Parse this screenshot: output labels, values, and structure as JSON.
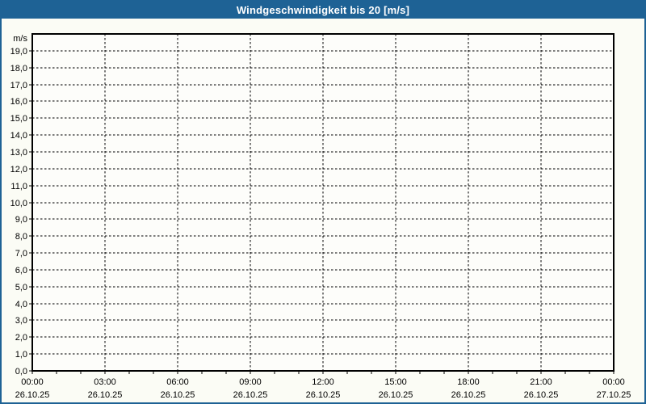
{
  "window": {
    "title": "Windgeschwindigkeit bis 20 [m/s]"
  },
  "colors": {
    "titlebar_bg": "#1e6295",
    "titlebar_text": "#ffffff",
    "frame_border": "#1e6295",
    "page_bg": "#fbfcf5",
    "plot_bg": "#fdfdfa",
    "grid": "#000000",
    "axis": "#000000",
    "label_text": "#000000"
  },
  "chart_data": {
    "type": "line",
    "title": "Windgeschwindigkeit bis 20 [m/s]",
    "ylabel": "m/s",
    "ylim": [
      0,
      20
    ],
    "ytick_step": 1,
    "ytick_labels": [
      "0,0",
      "1,0",
      "2,0",
      "3,0",
      "4,0",
      "5,0",
      "6,0",
      "7,0",
      "8,0",
      "9,0",
      "10,0",
      "11,0",
      "12,0",
      "13,0",
      "14,0",
      "15,0",
      "16,0",
      "17,0",
      "18,0",
      "19,0"
    ],
    "xlim_hours": [
      0,
      24
    ],
    "x_major_step_hours": 3,
    "x_minor_step_hours": 1,
    "xticks": [
      {
        "hour": 0,
        "time": "00:00",
        "date": "26.10.25"
      },
      {
        "hour": 3,
        "time": "03:00",
        "date": "26.10.25"
      },
      {
        "hour": 6,
        "time": "06:00",
        "date": "26.10.25"
      },
      {
        "hour": 9,
        "time": "09:00",
        "date": "26.10.25"
      },
      {
        "hour": 12,
        "time": "12:00",
        "date": "26.10.25"
      },
      {
        "hour": 15,
        "time": "15:00",
        "date": "26.10.25"
      },
      {
        "hour": 18,
        "time": "18:00",
        "date": "26.10.25"
      },
      {
        "hour": 21,
        "time": "21:00",
        "date": "26.10.25"
      },
      {
        "hour": 24,
        "time": "00:00",
        "date": "27.10.25"
      }
    ],
    "grid_style": "dashed",
    "legend": "none",
    "series": []
  }
}
